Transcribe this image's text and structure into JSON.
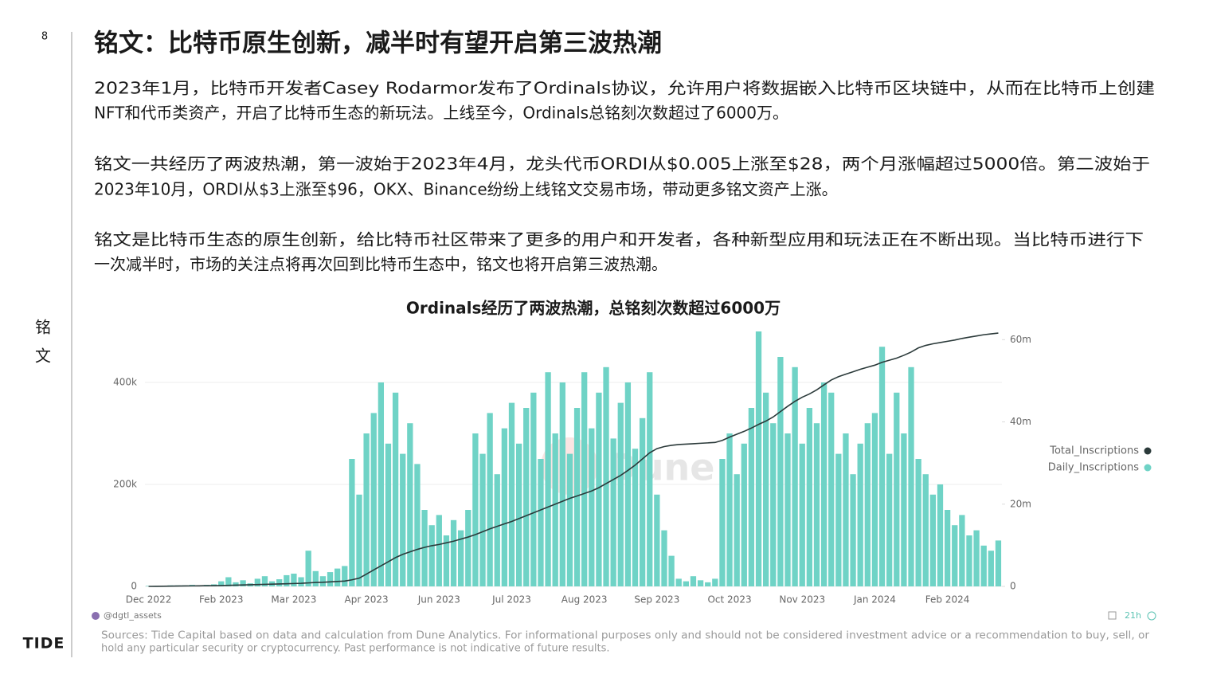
{
  "page": {
    "number": "8",
    "side_label": [
      "铭",
      "文"
    ],
    "logo": "TIDE",
    "title": "铭文：比特币原生创新，减半时有望开启第三波热潮",
    "paragraphs": [
      [
        "2023年1月，比特币开发者Casey Rodarmor发布了Ordinals协议，允许用户将数据嵌入比特币区块链中，从而在比特币上创建",
        "NFT和代币类资产，开启了比特币生态的新玩法。上线至今，Ordinals总铭刻次数超过了6000万。"
      ],
      [
        "铭文一共经历了两波热潮，第一波始于2023年4月，龙头代币ORDI从$0.005上涨至$28，两个月涨幅超过5000倍。第二波始于",
        "2023年10月，ORDI从$3上涨至$96，OKX、Binance纷纷上线铭文交易市场，带动更多铭文资产上涨。"
      ],
      [
        "铭文是比特币生态的原生创新，给比特币社区带来了更多的用户和开发者，各种新型应用和玩法正在不断出现。当比特币进行下",
        "一次减半时，市场的关注点将再次回到比特币生态中，铭文也将开启第三波热潮。"
      ]
    ],
    "sources": [
      "Sources: Tide Capital based on data and calculation from Dune Analytics. For informational purposes only and should not be considered investment advice or a recommendation to buy, sell, or",
      "hold any particular security or cryptocurrency. Past performance is not indicative of future results."
    ]
  },
  "chart_data": {
    "type": "combo",
    "title": "Ordinals经历了两波热潮，总铭刻次数超过6000万",
    "watermark": "Dune",
    "credit": "@dgtl_assets",
    "freshness": "21h",
    "categories": [
      "Dec 2022",
      null,
      null,
      null,
      null,
      null,
      null,
      null,
      null,
      null,
      "Feb 2023",
      null,
      null,
      null,
      null,
      null,
      null,
      null,
      null,
      null,
      "Mar 2023",
      null,
      null,
      null,
      null,
      null,
      null,
      null,
      null,
      null,
      "Apr 2023",
      null,
      null,
      null,
      null,
      null,
      null,
      null,
      null,
      null,
      "Jun 2023",
      null,
      null,
      null,
      null,
      null,
      null,
      null,
      null,
      null,
      "Jul 2023",
      null,
      null,
      null,
      null,
      null,
      null,
      null,
      null,
      null,
      "Aug 2023",
      null,
      null,
      null,
      null,
      null,
      null,
      null,
      null,
      null,
      "Sep 2023",
      null,
      null,
      null,
      null,
      null,
      null,
      null,
      null,
      null,
      "Oct 2023",
      null,
      null,
      null,
      null,
      null,
      null,
      null,
      null,
      null,
      "Nov 2023",
      null,
      null,
      null,
      null,
      null,
      null,
      null,
      null,
      null,
      "Jan 2024",
      null,
      null,
      null,
      null,
      null,
      null,
      null,
      null,
      null,
      "Feb 2024",
      null,
      null,
      null,
      null,
      null,
      null,
      null
    ],
    "ylim": [
      0,
      500000
    ],
    "yticks": [
      0,
      {
        "value": 200000,
        "label": "200k"
      },
      {
        "value": 400000,
        "label": "400k"
      }
    ],
    "y2lim": [
      0,
      62000000
    ],
    "y2ticks": [
      0,
      {
        "value": 20000000,
        "label": "20m"
      },
      {
        "value": 40000000,
        "label": "40m"
      },
      {
        "value": 60000000,
        "label": "60m"
      }
    ],
    "grid": true,
    "legend": "right",
    "series": [
      {
        "name": "Total_Inscriptions",
        "type": "line",
        "axis": "y2",
        "color": "#2b3a3a",
        "values": [
          0,
          20000,
          40000,
          60000,
          80000,
          100000,
          120000,
          140000,
          160000,
          180000,
          200000,
          250000,
          300000,
          350000,
          400000,
          450000,
          500000,
          550000,
          600000,
          650000,
          700000,
          750000,
          850000,
          950000,
          1000000,
          1100000,
          1200000,
          1300000,
          1600000,
          2000000,
          3000000,
          4000000,
          5000000,
          6000000,
          7000000,
          7800000,
          8400000,
          9000000,
          9500000,
          9900000,
          10200000,
          10600000,
          11000000,
          11500000,
          12000000,
          12600000,
          13300000,
          14000000,
          14600000,
          15200000,
          15800000,
          16500000,
          17200000,
          17900000,
          18600000,
          19300000,
          20000000,
          20700000,
          21400000,
          22000000,
          22600000,
          23200000,
          24000000,
          25000000,
          26000000,
          27000000,
          28200000,
          29500000,
          31000000,
          32500000,
          33500000,
          34000000,
          34300000,
          34500000,
          34600000,
          34700000,
          34800000,
          34900000,
          35000000,
          35500000,
          36300000,
          37000000,
          37700000,
          38500000,
          39400000,
          40200000,
          41200000,
          42500000,
          43800000,
          45000000,
          46000000,
          46800000,
          47800000,
          49000000,
          50200000,
          51000000,
          51600000,
          52200000,
          52800000,
          53300000,
          53800000,
          54500000,
          55000000,
          55500000,
          56200000,
          57000000,
          58000000,
          58600000,
          59000000,
          59300000,
          59600000,
          59900000,
          60300000,
          60600000,
          60900000,
          61200000,
          61400000,
          61600000
        ]
      },
      {
        "name": "Daily_Inscriptions",
        "type": "bar",
        "color": "#6fd3c6",
        "values": [
          1000,
          1000,
          1000,
          2000,
          2000,
          2000,
          3000,
          2000,
          3000,
          4000,
          10000,
          18000,
          8000,
          12000,
          6000,
          15000,
          20000,
          10000,
          14000,
          22000,
          25000,
          18000,
          70000,
          30000,
          20000,
          28000,
          35000,
          40000,
          250000,
          180000,
          300000,
          340000,
          400000,
          280000,
          380000,
          260000,
          320000,
          240000,
          150000,
          120000,
          140000,
          100000,
          130000,
          110000,
          150000,
          300000,
          260000,
          340000,
          220000,
          310000,
          360000,
          280000,
          350000,
          380000,
          250000,
          420000,
          300000,
          400000,
          260000,
          350000,
          420000,
          310000,
          380000,
          430000,
          290000,
          360000,
          400000,
          270000,
          330000,
          420000,
          180000,
          110000,
          60000,
          15000,
          10000,
          20000,
          12000,
          8000,
          15000,
          250000,
          300000,
          220000,
          280000,
          350000,
          500000,
          380000,
          320000,
          450000,
          300000,
          430000,
          280000,
          350000,
          320000,
          400000,
          380000,
          260000,
          300000,
          220000,
          280000,
          320000,
          340000,
          470000,
          260000,
          380000,
          300000,
          430000,
          250000,
          220000,
          180000,
          200000,
          150000,
          120000,
          140000,
          100000,
          110000,
          80000,
          70000,
          90000
        ]
      }
    ]
  }
}
